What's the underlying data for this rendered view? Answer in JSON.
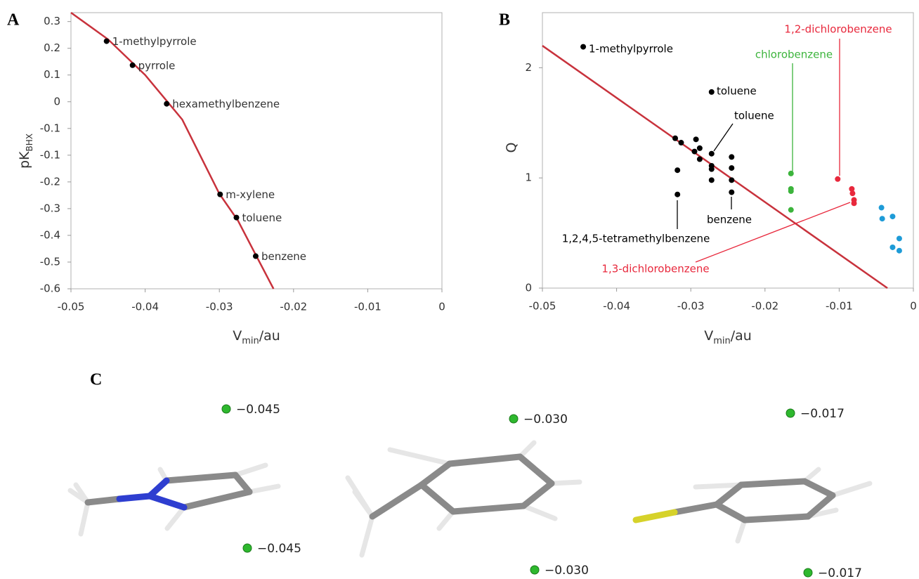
{
  "chart_data": [
    {
      "type": "scatter",
      "panel_label": "A",
      "xlabel": [
        "V",
        "min",
        "/au"
      ],
      "ylabel": [
        "pK",
        "BHX"
      ],
      "xlim": [
        -0.05,
        0
      ],
      "ylim": [
        -0.6,
        0.33
      ],
      "xticks": [
        -0.05,
        -0.04,
        -0.03,
        -0.02,
        -0.01,
        0
      ],
      "yticks": [
        0.3,
        {
          "value": 0.21,
          "label": "0.2"
        },
        {
          "value": 0.12,
          "label": "0.1"
        },
        {
          "value": 0.03,
          "label": "0"
        },
        {
          "value": -0.06,
          "label": "-0.1"
        },
        {
          "value": -0.15,
          "label": "-0.1"
        },
        {
          "value": -0.24,
          "label": "-0.2"
        },
        {
          "value": -0.33,
          "label": "-0.3"
        },
        {
          "value": -0.42,
          "label": "-0.4"
        },
        {
          "value": -0.51,
          "label": "-0.5"
        },
        -0.6
      ],
      "series": [
        {
          "color": "#000000",
          "x": [
            -0.0452,
            -0.0417,
            -0.0371,
            -0.0299,
            -0.0277,
            -0.0251
          ],
          "y": [
            0.234,
            0.153,
            0.023,
            -0.282,
            -0.36,
            -0.49
          ],
          "labels": [
            "1-methylpyrrole",
            "pyrrole",
            "hexamethylbenzene",
            "m-xylene",
            "toluene",
            "benzene"
          ]
        }
      ],
      "fit": {
        "color": "#c8323c",
        "x": [
          -0.05,
          -0.045,
          -0.04,
          -0.035,
          -0.03,
          -0.0275,
          -0.025,
          -0.0227
        ],
        "y": [
          0.33,
          0.24,
          0.12,
          -0.03,
          -0.28,
          -0.37,
          -0.49,
          -0.6
        ]
      }
    },
    {
      "type": "scatter",
      "panel_label": "B",
      "xlabel": [
        "V",
        "min",
        "/au"
      ],
      "ylabel": [
        "Q"
      ],
      "xlim": [
        -0.05,
        0
      ],
      "ylim": [
        0,
        2.5
      ],
      "xticks": [
        -0.05,
        -0.04,
        -0.03,
        -0.02,
        -0.01,
        0
      ],
      "yticks": [
        0,
        1,
        2
      ],
      "series": [
        {
          "color": "#000000",
          "x": [
            -0.0445,
            -0.0272,
            -0.0321,
            -0.0313,
            -0.0293,
            -0.0288,
            -0.0295,
            -0.0288,
            -0.0272,
            -0.0272,
            -0.0272,
            -0.0272,
            -0.0318,
            -0.0318,
            -0.0245,
            -0.0245,
            -0.0245,
            -0.0245
          ],
          "y": [
            2.19,
            1.78,
            1.36,
            1.32,
            1.35,
            1.27,
            1.24,
            1.17,
            1.22,
            1.11,
            1.08,
            0.98,
            1.07,
            0.85,
            1.19,
            1.09,
            0.98,
            0.87
          ]
        },
        {
          "color": "#3cb43c",
          "x": [
            -0.0165,
            -0.0165,
            -0.0165,
            -0.0165
          ],
          "y": [
            1.04,
            0.9,
            0.88,
            0.71
          ]
        },
        {
          "color": "#e8283c",
          "x": [
            -0.0102,
            -0.0083,
            -0.0082,
            -0.008,
            -0.008
          ],
          "y": [
            0.99,
            0.9,
            0.86,
            0.8,
            0.77
          ]
        },
        {
          "color": "#1e9bd7",
          "x": [
            -0.0043,
            -0.0042,
            -0.0028,
            -0.0019,
            -0.0028,
            -0.0019
          ],
          "y": [
            0.73,
            0.63,
            0.65,
            0.45,
            0.37,
            0.34
          ]
        }
      ],
      "fit": {
        "color": "#c8323c",
        "x": [
          -0.05,
          -0.0035
        ],
        "y": [
          2.2,
          0
        ]
      },
      "annotations": [
        {
          "text": "1-methylpyrrole",
          "color": "#000000"
        },
        {
          "text": "toluene",
          "color": "#000000"
        },
        {
          "text": "toluene",
          "color": "#000000"
        },
        {
          "text": "1,2,4,5-tetramethylbenzene",
          "color": "#000000"
        },
        {
          "text": "benzene",
          "color": "#000000"
        },
        {
          "text": "chlorobenzene",
          "color": "#3cb43c"
        },
        {
          "text": "1,2-dichlorobenzene",
          "color": "#e8283c"
        },
        {
          "text": "1,3-dichlorobenzene",
          "color": "#e8283c"
        }
      ]
    }
  ],
  "panel_c": {
    "label": "C",
    "labels": [
      "−0.045",
      "−0.045",
      "−0.030",
      "−0.030",
      "−0.017",
      "−0.017"
    ]
  }
}
